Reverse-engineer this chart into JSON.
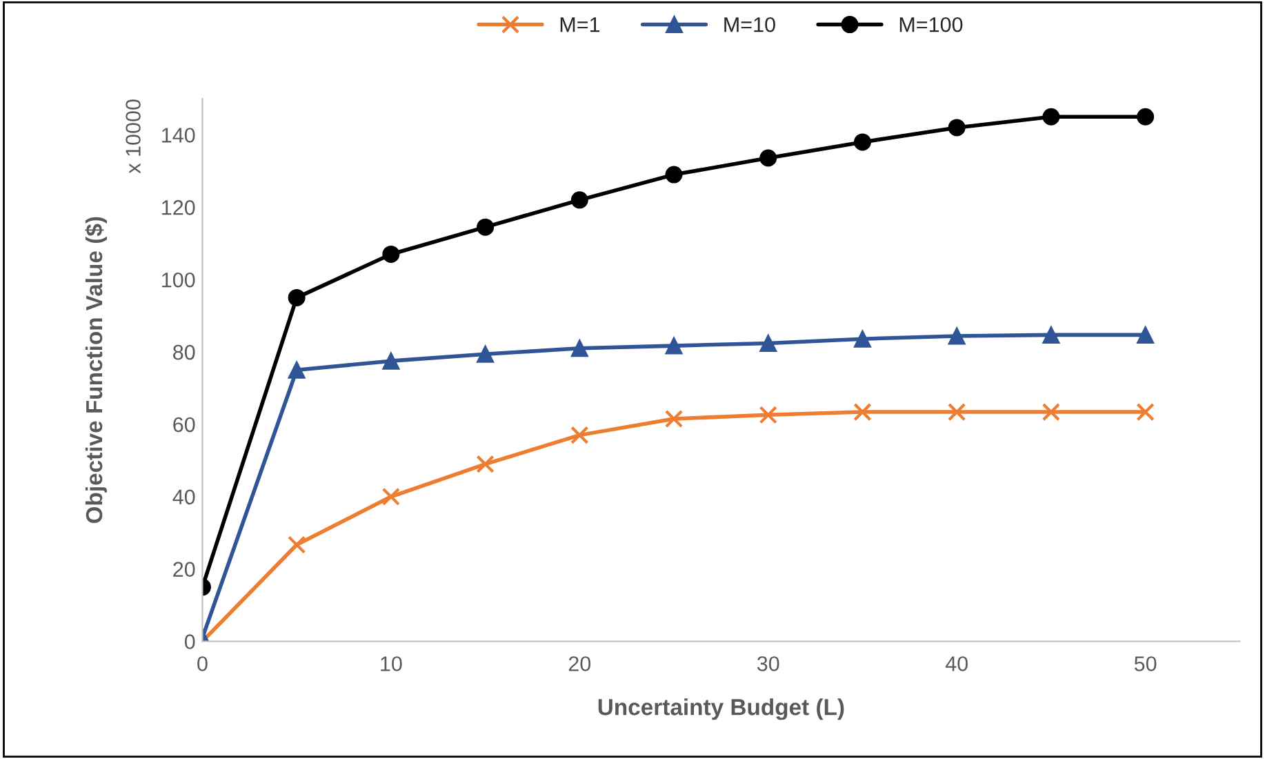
{
  "chart_data": {
    "type": "line",
    "xlabel": "Uncertainty Budget (L)",
    "ylabel": "Objective Function Value ($)",
    "annotations": [
      "x 10000"
    ],
    "x": [
      0,
      5,
      10,
      15,
      20,
      25,
      30,
      35,
      40,
      45,
      50
    ],
    "series": [
      {
        "name": "M=1",
        "color": "#ed7d31",
        "marker": "cross",
        "values": [
          0,
          26.7,
          40,
          49,
          57,
          61.5,
          62.6,
          63.4,
          63.4,
          63.4,
          63.4
        ]
      },
      {
        "name": "M=10",
        "color": "#2f5597",
        "marker": "triangle",
        "values": [
          1,
          75,
          77.5,
          79.4,
          81,
          81.7,
          82.4,
          83.6,
          84.4,
          84.7,
          84.7
        ]
      },
      {
        "name": "M=100",
        "color": "#000000",
        "marker": "circle",
        "values": [
          15,
          95,
          107,
          114.5,
          122,
          129,
          133.6,
          138,
          142,
          145,
          145
        ]
      }
    ],
    "xlim": [
      0,
      55
    ],
    "xticks": [
      0,
      10,
      20,
      30,
      40,
      50
    ],
    "ylim": [
      0,
      150
    ],
    "yticks": [
      0,
      20,
      40,
      60,
      80,
      100,
      120,
      140
    ],
    "grid": false,
    "legend": "top",
    "line_style": "solid"
  }
}
